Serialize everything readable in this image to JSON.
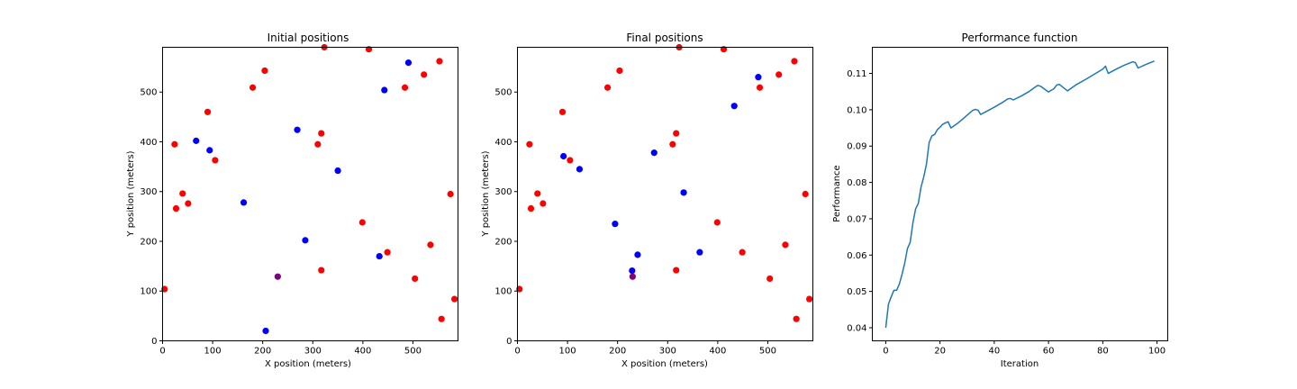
{
  "chart_data": [
    {
      "type": "scatter",
      "title": "Initial positions",
      "xlabel": "X position (meters)",
      "ylabel": "Y position (meters)",
      "xlim": [
        0,
        590
      ],
      "ylim": [
        0,
        590
      ],
      "xticks": [
        0,
        100,
        200,
        300,
        400,
        500
      ],
      "yticks": [
        0,
        100,
        200,
        300,
        400,
        500
      ],
      "grid": false,
      "series": [
        {
          "color": "#ff0000",
          "points": [
            [
              4,
              104
            ],
            [
              24,
              395
            ],
            [
              27,
              266
            ],
            [
              40,
              296
            ],
            [
              51,
              276
            ],
            [
              90,
              460
            ],
            [
              105,
              363
            ],
            [
              180,
              509
            ],
            [
              204,
              543
            ],
            [
              323,
              590
            ],
            [
              310,
              395
            ],
            [
              317,
              417
            ],
            [
              317,
              142
            ],
            [
              399,
              238
            ],
            [
              412,
              586
            ],
            [
              449,
              178
            ],
            [
              484,
              509
            ],
            [
              504,
              125
            ],
            [
              522,
              535
            ],
            [
              535,
              193
            ],
            [
              553,
              562
            ],
            [
              575,
              295
            ],
            [
              557,
              44
            ],
            [
              583,
              84
            ]
          ]
        },
        {
          "color": "#0000ff",
          "points": [
            [
              67,
              402
            ],
            [
              94,
              383
            ],
            [
              162,
              278
            ],
            [
              269,
              424
            ],
            [
              285,
              202
            ],
            [
              350,
              342
            ],
            [
              206,
              20
            ],
            [
              433,
              170
            ],
            [
              443,
              504
            ],
            [
              491,
              559
            ]
          ]
        },
        {
          "color": "#800080",
          "points": [
            [
              230,
              129
            ]
          ]
        }
      ]
    },
    {
      "type": "scatter",
      "title": "Final positions",
      "xlabel": "X position (meters)",
      "ylabel": "Y position (meters)",
      "xlim": [
        0,
        590
      ],
      "ylim": [
        0,
        590
      ],
      "xticks": [
        0,
        100,
        200,
        300,
        400,
        500
      ],
      "yticks": [
        0,
        100,
        200,
        300,
        400,
        500
      ],
      "grid": false,
      "series": [
        {
          "color": "#ff0000",
          "points": [
            [
              4,
              104
            ],
            [
              24,
              395
            ],
            [
              27,
              266
            ],
            [
              40,
              296
            ],
            [
              51,
              276
            ],
            [
              90,
              460
            ],
            [
              105,
              363
            ],
            [
              180,
              509
            ],
            [
              204,
              543
            ],
            [
              323,
              590
            ],
            [
              310,
              395
            ],
            [
              317,
              417
            ],
            [
              317,
              142
            ],
            [
              399,
              238
            ],
            [
              412,
              586
            ],
            [
              449,
              178
            ],
            [
              484,
              509
            ],
            [
              504,
              125
            ],
            [
              522,
              535
            ],
            [
              535,
              193
            ],
            [
              553,
              562
            ],
            [
              575,
              295
            ],
            [
              557,
              44
            ],
            [
              583,
              84
            ]
          ]
        },
        {
          "color": "#0000ff",
          "points": [
            [
              92,
              371
            ],
            [
              124,
              345
            ],
            [
              195,
              235
            ],
            [
              229,
              141
            ],
            [
              240,
              173
            ],
            [
              273,
              378
            ],
            [
              332,
              298
            ],
            [
              364,
              178
            ],
            [
              433,
              472
            ],
            [
              481,
              530
            ]
          ]
        },
        {
          "color": "#800080",
          "points": [
            [
              230,
              129
            ]
          ]
        }
      ]
    },
    {
      "type": "line",
      "title": "Performance function",
      "xlabel": "Iteration",
      "ylabel": "Performance",
      "xlim": [
        -4.95,
        103.95
      ],
      "ylim": [
        0.0364,
        0.1172
      ],
      "xticks": [
        0,
        20,
        40,
        60,
        80,
        100
      ],
      "yticks": [
        0.04,
        0.05,
        0.06,
        0.07,
        0.08,
        0.09,
        0.1,
        0.11
      ],
      "ytick_labels": [
        "0.04",
        "0.05",
        "0.06",
        "0.07",
        "0.08",
        "0.09",
        "0.10",
        "0.11"
      ],
      "grid": false,
      "series": [
        {
          "color": "#1f77b4",
          "x": [
            0,
            1,
            2,
            3,
            4,
            5,
            6,
            7,
            8,
            9,
            10,
            11,
            12,
            13,
            14,
            15,
            16,
            17,
            18,
            19,
            20,
            21,
            22,
            23,
            24,
            26,
            28,
            30,
            32,
            33,
            34,
            35,
            37,
            40,
            43,
            45,
            46,
            47,
            50,
            53,
            55,
            56,
            57,
            60,
            62,
            63,
            64,
            67,
            70,
            74,
            78,
            80,
            81,
            82,
            85,
            88,
            91,
            92,
            93,
            96,
            99
          ],
          "y": [
            0.04,
            0.0465,
            0.0485,
            0.0503,
            0.0503,
            0.052,
            0.0547,
            0.0578,
            0.0618,
            0.0635,
            0.0688,
            0.0727,
            0.0742,
            0.0787,
            0.0815,
            0.085,
            0.091,
            0.0928,
            0.0932,
            0.0945,
            0.0952,
            0.096,
            0.0964,
            0.0967,
            0.095,
            0.096,
            0.0972,
            0.0985,
            0.0998,
            0.1001,
            0.0999,
            0.0987,
            0.0995,
            0.1007,
            0.102,
            0.103,
            0.1031,
            0.1027,
            0.1038,
            0.1051,
            0.1062,
            0.1067,
            0.1065,
            0.1049,
            0.1058,
            0.1068,
            0.107,
            0.1052,
            0.1068,
            0.1085,
            0.1103,
            0.1112,
            0.112,
            0.11,
            0.1112,
            0.1123,
            0.1132,
            0.113,
            0.1115,
            0.1125,
            0.1134
          ]
        }
      ]
    }
  ]
}
